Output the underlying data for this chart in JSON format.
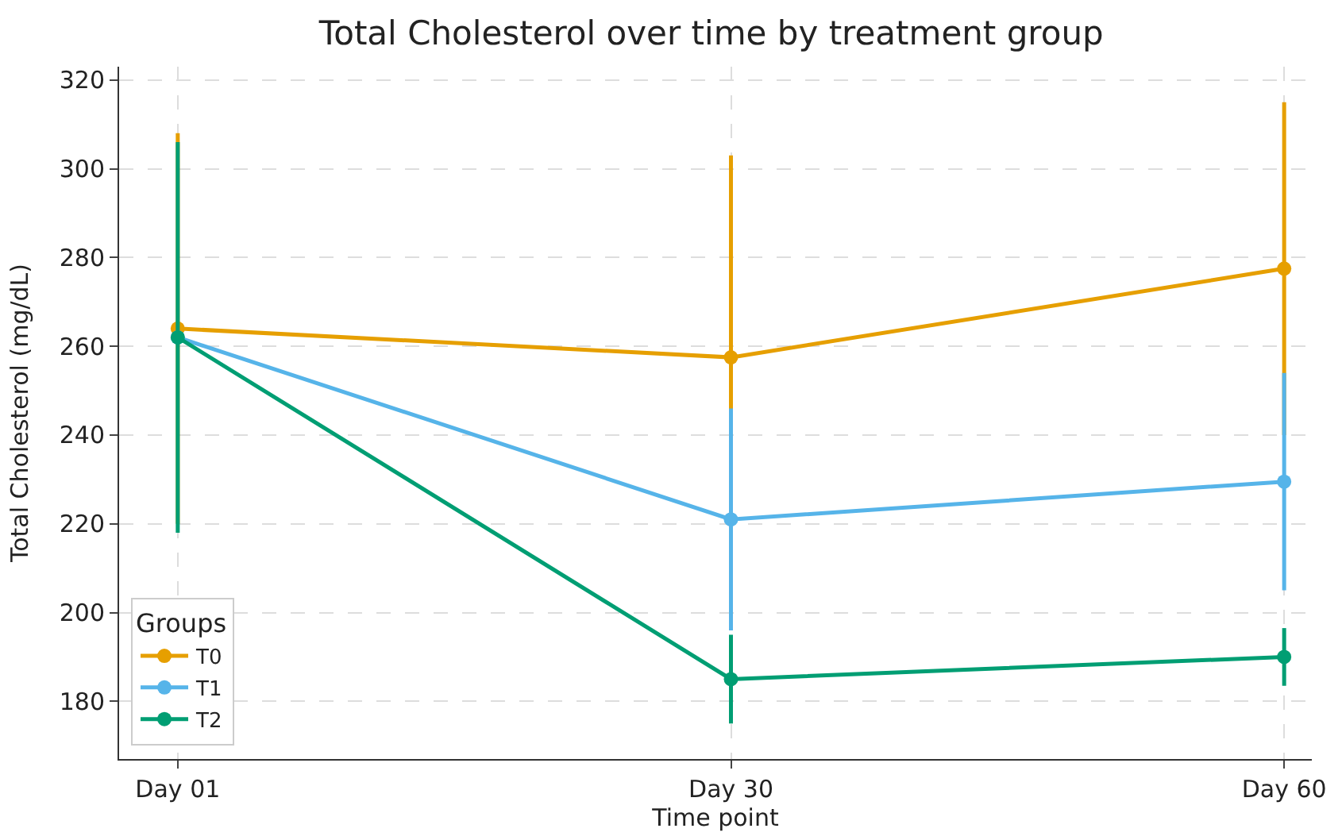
{
  "chart_data": {
    "type": "line",
    "title": "Total Cholesterol over time by treatment group",
    "xlabel": "Time point",
    "ylabel": "Total Cholesterol (mg/dL)",
    "legend_title": "Groups",
    "categories": [
      "Day 01",
      "Day 30",
      "Day 60"
    ],
    "series": [
      {
        "name": "T0",
        "color": "#e69f00",
        "values": [
          264,
          257.5,
          277.5
        ],
        "errors": [
          44,
          45.5,
          37.5
        ]
      },
      {
        "name": "T1",
        "color": "#56b4e9",
        "values": [
          262,
          221,
          229.5
        ],
        "errors": [
          null,
          25,
          24.5
        ]
      },
      {
        "name": "T2",
        "color": "#009e73",
        "values": [
          262,
          185,
          190
        ],
        "errors": [
          44,
          10,
          6.5
        ]
      }
    ],
    "ylim": [
      167,
      323
    ],
    "yticks": [
      180,
      200,
      220,
      240,
      260,
      280,
      300,
      320
    ],
    "grid": true,
    "legend": "bottom left",
    "marker": "circle",
    "line_style": "solid"
  }
}
